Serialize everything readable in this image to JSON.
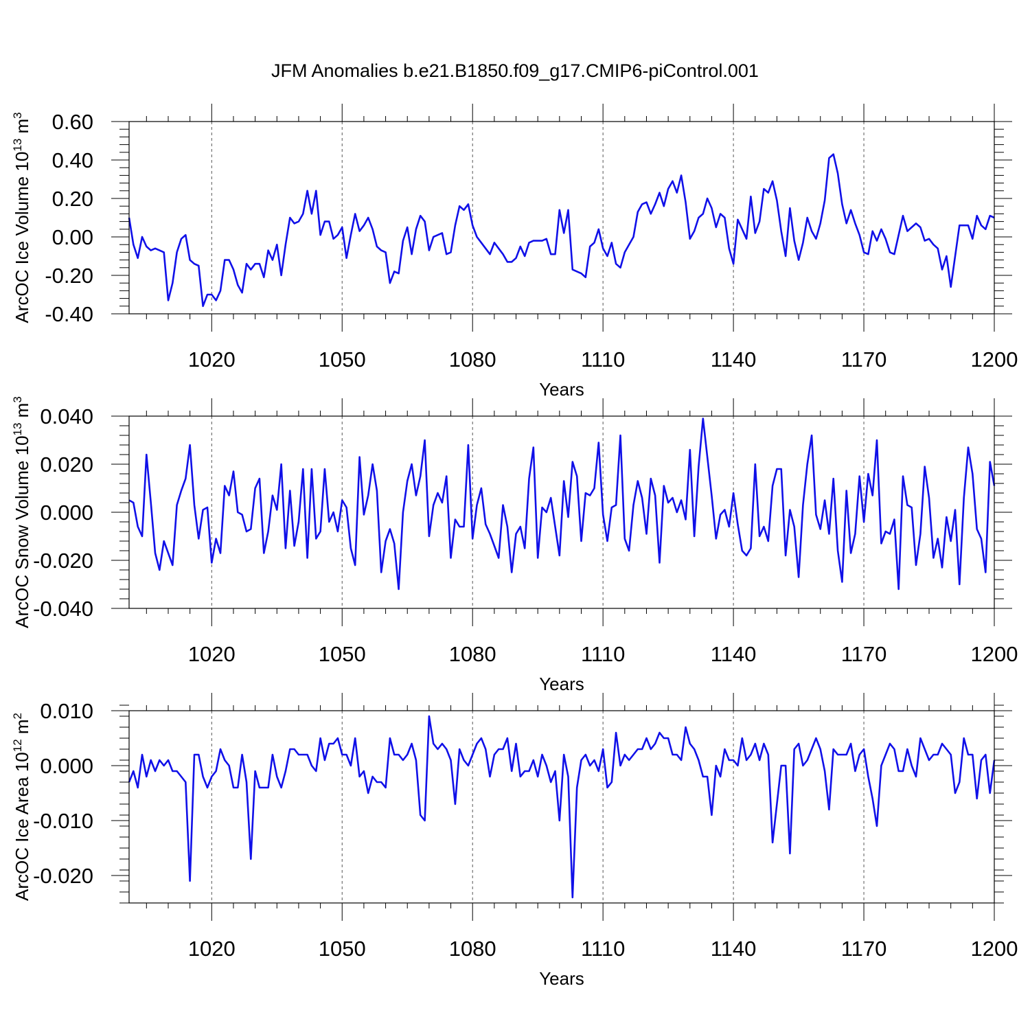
{
  "title": "JFM Anomalies b.e21.B1850.f09_g17.CMIP6-piControl.001",
  "chart_data": [
    {
      "type": "line",
      "ylabel": "ArcOC Ice Volume 10",
      "ylabel_exp": "13",
      "ylabel_unit": "m",
      "ylabel_unit_exp": "3",
      "xlabel": "Years",
      "xlim": [
        1001,
        1200
      ],
      "ylim": [
        -0.4,
        0.6
      ],
      "yticks": [
        -0.4,
        -0.2,
        0.0,
        0.2,
        0.4,
        0.6
      ],
      "ytick_labels": [
        "-0.40",
        "-0.20",
        "0.00",
        "0.20",
        "0.40",
        "0.60"
      ],
      "xticks": [
        1020,
        1050,
        1080,
        1110,
        1140,
        1170,
        1200
      ],
      "xtick_labels": [
        "1020",
        "1050",
        "1080",
        "1110",
        "1140",
        "1170",
        "1200"
      ],
      "grid": "dashed vertical at major x ticks",
      "color": "#1010e8",
      "x_start": 1001,
      "values": [
        0.1,
        -0.04,
        -0.11,
        0.0,
        -0.05,
        -0.07,
        -0.06,
        -0.07,
        -0.08,
        -0.33,
        -0.24,
        -0.08,
        -0.01,
        0.01,
        -0.12,
        -0.14,
        -0.15,
        -0.36,
        -0.3,
        -0.3,
        -0.33,
        -0.28,
        -0.12,
        -0.12,
        -0.17,
        -0.25,
        -0.29,
        -0.14,
        -0.17,
        -0.14,
        -0.14,
        -0.21,
        -0.07,
        -0.12,
        -0.04,
        -0.2,
        -0.04,
        0.1,
        0.07,
        0.08,
        0.12,
        0.24,
        0.12,
        0.24,
        0.01,
        0.08,
        0.08,
        -0.01,
        0.01,
        0.05,
        -0.11,
        0.01,
        0.12,
        0.03,
        0.06,
        0.1,
        0.04,
        -0.05,
        -0.07,
        -0.08,
        -0.24,
        -0.18,
        -0.19,
        -0.02,
        0.05,
        -0.09,
        0.04,
        0.11,
        0.08,
        -0.07,
        0.0,
        0.01,
        0.02,
        -0.09,
        -0.08,
        0.06,
        0.16,
        0.14,
        0.17,
        0.06,
        0.0,
        -0.03,
        -0.06,
        -0.09,
        -0.03,
        -0.06,
        -0.09,
        -0.13,
        -0.13,
        -0.11,
        -0.05,
        -0.1,
        -0.03,
        -0.02,
        -0.02,
        -0.02,
        -0.01,
        -0.09,
        -0.09,
        0.14,
        0.02,
        0.14,
        -0.17,
        -0.18,
        -0.19,
        -0.21,
        -0.05,
        -0.03,
        0.04,
        -0.06,
        -0.1,
        -0.03,
        -0.14,
        -0.16,
        -0.08,
        -0.04,
        0.0,
        0.13,
        0.17,
        0.18,
        0.12,
        0.17,
        0.23,
        0.16,
        0.25,
        0.29,
        0.23,
        0.32,
        0.18,
        -0.01,
        0.03,
        0.1,
        0.12,
        0.2,
        0.15,
        0.05,
        0.12,
        0.1,
        -0.06,
        -0.14,
        0.09,
        0.04,
        -0.01,
        0.21,
        0.02,
        0.08,
        0.25,
        0.23,
        0.29,
        0.19,
        0.03,
        -0.1,
        0.15,
        -0.02,
        -0.12,
        -0.03,
        0.1,
        0.03,
        -0.01,
        0.07,
        0.19,
        0.41,
        0.43,
        0.33,
        0.17,
        0.07,
        0.14,
        0.07,
        0.01,
        -0.08,
        -0.09,
        0.03,
        -0.02,
        0.04,
        -0.01,
        -0.08,
        -0.09,
        0.01,
        0.11,
        0.03,
        0.05,
        0.07,
        0.05,
        -0.02,
        -0.01,
        -0.04,
        -0.06,
        -0.17,
        -0.1,
        -0.26,
        -0.1,
        0.06,
        0.06,
        0.06,
        -0.01,
        0.11,
        0.06,
        0.04,
        0.11,
        0.1
      ]
    },
    {
      "type": "line",
      "ylabel": "ArcOC Snow Volume 10",
      "ylabel_exp": "13",
      "ylabel_unit": "m",
      "ylabel_unit_exp": "3",
      "xlabel": "Years",
      "xlim": [
        1001,
        1200
      ],
      "ylim": [
        -0.04,
        0.04
      ],
      "yticks": [
        -0.04,
        -0.02,
        0.0,
        0.02,
        0.04
      ],
      "ytick_labels": [
        "-0.040",
        "-0.020",
        "0.000",
        "0.020",
        "0.040"
      ],
      "xticks": [
        1020,
        1050,
        1080,
        1110,
        1140,
        1170,
        1200
      ],
      "xtick_labels": [
        "1020",
        "1050",
        "1080",
        "1110",
        "1140",
        "1170",
        "1200"
      ],
      "grid": "dashed vertical at major x ticks",
      "color": "#1010e8",
      "x_start": 1001,
      "values": [
        0.005,
        0.004,
        -0.006,
        -0.01,
        0.024,
        0.004,
        -0.017,
        -0.024,
        -0.012,
        -0.017,
        -0.022,
        0.003,
        0.009,
        0.014,
        0.028,
        0.003,
        -0.011,
        0.001,
        0.002,
        -0.021,
        -0.011,
        -0.017,
        0.011,
        0.007,
        0.017,
        0.0,
        -0.001,
        -0.008,
        -0.007,
        0.01,
        0.014,
        -0.017,
        -0.008,
        0.007,
        0.001,
        0.02,
        -0.015,
        0.009,
        -0.014,
        -0.004,
        0.018,
        -0.019,
        0.018,
        -0.011,
        -0.008,
        0.018,
        -0.004,
        0.0,
        -0.008,
        0.005,
        0.002,
        -0.015,
        -0.022,
        0.023,
        -0.001,
        0.007,
        0.02,
        0.009,
        -0.025,
        -0.012,
        -0.007,
        -0.013,
        -0.032,
        0.0,
        0.013,
        0.02,
        0.007,
        0.015,
        0.03,
        -0.01,
        0.003,
        0.008,
        0.004,
        0.015,
        -0.019,
        -0.003,
        -0.006,
        -0.006,
        0.028,
        -0.011,
        0.003,
        0.01,
        -0.005,
        -0.009,
        -0.014,
        -0.019,
        0.003,
        -0.006,
        -0.025,
        -0.009,
        -0.006,
        -0.015,
        0.014,
        0.027,
        -0.019,
        0.002,
        0.0,
        0.006,
        -0.006,
        -0.018,
        0.013,
        -0.002,
        0.021,
        0.015,
        -0.012,
        0.008,
        0.007,
        0.01,
        0.029,
        -0.001,
        -0.012,
        0.002,
        0.003,
        0.032,
        -0.011,
        -0.016,
        0.003,
        0.013,
        0.006,
        -0.009,
        0.014,
        0.007,
        -0.021,
        0.011,
        0.004,
        0.006,
        0.0,
        0.005,
        -0.003,
        0.026,
        -0.01,
        0.019,
        0.039,
        0.023,
        0.007,
        -0.011,
        -0.001,
        0.001,
        -0.006,
        0.008,
        -0.005,
        -0.016,
        -0.018,
        -0.015,
        0.02,
        -0.01,
        -0.006,
        -0.012,
        0.011,
        0.018,
        0.018,
        -0.018,
        0.001,
        -0.006,
        -0.027,
        0.003,
        0.02,
        0.032,
        -0.001,
        -0.007,
        0.005,
        -0.009,
        0.014,
        -0.016,
        -0.029,
        0.009,
        -0.017,
        -0.009,
        0.015,
        -0.004,
        0.016,
        0.007,
        0.03,
        -0.013,
        -0.008,
        -0.009,
        -0.003,
        -0.032,
        0.015,
        0.003,
        0.002,
        -0.022,
        -0.009,
        0.019,
        0.006,
        -0.019,
        -0.011,
        -0.023,
        -0.002,
        -0.012,
        0.001,
        -0.03,
        0.006,
        0.027,
        0.016,
        -0.007,
        -0.011,
        -0.025,
        0.021,
        0.011
      ]
    },
    {
      "type": "line",
      "ylabel": "ArcOC Ice Area 10",
      "ylabel_exp": "12",
      "ylabel_unit": "m",
      "ylabel_unit_exp": "2",
      "xlabel": "Years",
      "xlim": [
        1001,
        1200
      ],
      "ylim": [
        -0.025,
        0.01
      ],
      "yticks": [
        -0.02,
        -0.01,
        0.0,
        0.01
      ],
      "ytick_labels": [
        "-0.020",
        "-0.010",
        "0.000",
        "0.010"
      ],
      "xticks": [
        1020,
        1050,
        1080,
        1110,
        1140,
        1170,
        1200
      ],
      "xtick_labels": [
        "1020",
        "1050",
        "1080",
        "1110",
        "1140",
        "1170",
        "1200"
      ],
      "grid": "dashed vertical at major x ticks",
      "color": "#1010e8",
      "x_start": 1001,
      "values": [
        -0.003,
        -0.001,
        -0.004,
        0.002,
        -0.002,
        0.001,
        -0.001,
        0.001,
        0.0,
        0.001,
        -0.001,
        -0.001,
        -0.002,
        -0.003,
        -0.021,
        0.002,
        0.002,
        -0.002,
        -0.004,
        -0.002,
        -0.001,
        0.003,
        0.001,
        0.0,
        -0.004,
        -0.004,
        0.002,
        -0.003,
        -0.017,
        -0.001,
        -0.004,
        -0.004,
        -0.004,
        0.002,
        -0.002,
        -0.004,
        -0.001,
        0.003,
        0.003,
        0.002,
        0.002,
        0.002,
        0.0,
        -0.001,
        0.005,
        0.001,
        0.004,
        0.004,
        0.005,
        0.002,
        0.002,
        0.0,
        0.005,
        -0.002,
        -0.001,
        -0.005,
        -0.002,
        -0.003,
        -0.003,
        -0.004,
        0.005,
        0.002,
        0.002,
        0.001,
        0.002,
        0.004,
        0.001,
        -0.009,
        -0.01,
        0.009,
        0.004,
        0.003,
        0.004,
        0.003,
        0.001,
        -0.007,
        0.003,
        0.001,
        0.0,
        0.002,
        0.004,
        0.005,
        0.003,
        -0.002,
        0.002,
        0.003,
        0.003,
        0.005,
        -0.001,
        0.004,
        -0.002,
        -0.001,
        -0.001,
        0.001,
        -0.002,
        0.002,
        0.0,
        -0.003,
        -0.001,
        -0.01,
        0.002,
        -0.002,
        -0.024,
        -0.004,
        0.001,
        0.002,
        0.0,
        0.001,
        -0.001,
        0.003,
        -0.004,
        -0.003,
        0.006,
        0.0,
        0.002,
        0.001,
        0.002,
        0.003,
        0.003,
        0.005,
        0.003,
        0.004,
        0.006,
        0.005,
        0.005,
        0.002,
        0.002,
        0.001,
        0.007,
        0.004,
        0.003,
        0.001,
        -0.002,
        -0.002,
        -0.009,
        0.0,
        -0.002,
        0.003,
        0.001,
        0.001,
        0.0,
        0.005,
        0.001,
        0.002,
        0.004,
        0.001,
        0.004,
        0.002,
        -0.014,
        -0.007,
        0.0,
        0.0,
        -0.016,
        0.003,
        0.004,
        0.0,
        0.001,
        0.003,
        0.005,
        0.003,
        -0.001,
        -0.008,
        0.003,
        0.002,
        0.002,
        0.002,
        0.004,
        -0.001,
        0.002,
        0.003,
        -0.002,
        -0.006,
        -0.011,
        0.0,
        0.002,
        0.004,
        0.003,
        -0.001,
        -0.001,
        0.003,
        0.0,
        -0.002,
        0.005,
        0.003,
        0.001,
        0.002,
        0.002,
        0.004,
        0.003,
        0.002,
        -0.005,
        -0.003,
        0.005,
        0.002,
        0.002,
        -0.006,
        0.001,
        0.002,
        -0.005,
        0.001
      ]
    }
  ]
}
